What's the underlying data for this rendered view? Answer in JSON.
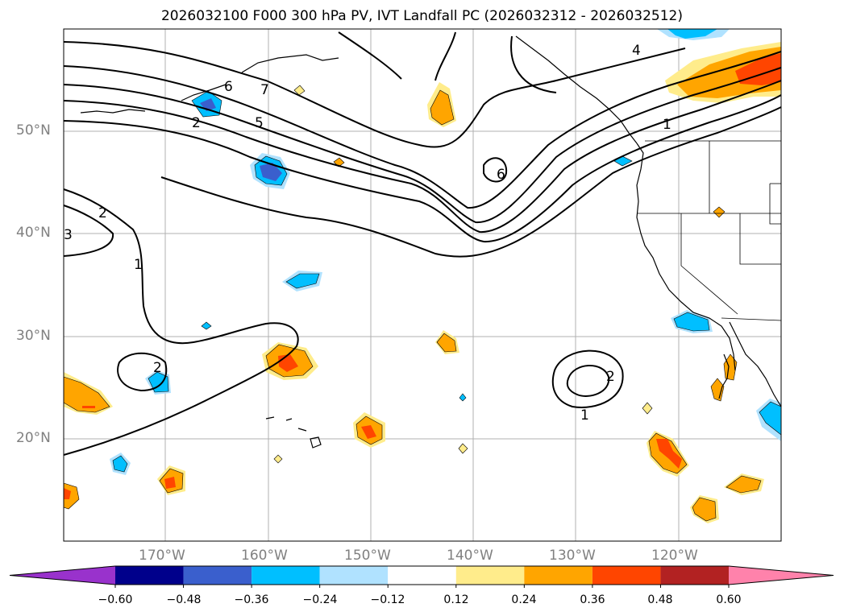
{
  "title": "2026032100 F000 300 hPa PV, IVT Landfall PC (2026032312 - 2026032512)",
  "latitude_labels": [
    "50°N",
    "40°N",
    "30°N",
    "20°N"
  ],
  "longitude_labels": [
    "170°W",
    "160°W",
    "150°W",
    "140°W",
    "130°W",
    "120°W"
  ],
  "colorbar": {
    "ticks": [
      "−0.60",
      "−0.48",
      "−0.36",
      "−0.24",
      "−0.12",
      "0.12",
      "0.24",
      "0.36",
      "0.48",
      "0.60"
    ],
    "colors": [
      "#9932cc",
      "#00008b",
      "#3a5fcd",
      "#00bfff",
      "#b0e2ff",
      "#ffffff",
      "#ffec8b",
      "#ffa500",
      "#ff4500",
      "#b22222",
      "#ff82ab"
    ]
  },
  "contour_labels": [
    "4",
    "6",
    "7",
    "2",
    "5",
    "1",
    "2",
    "3",
    "1",
    "6",
    "2",
    "2",
    "1"
  ],
  "colors": {
    "map_background": "#ffffff",
    "contour": "#000000",
    "grid": "#b0b0b0"
  }
}
